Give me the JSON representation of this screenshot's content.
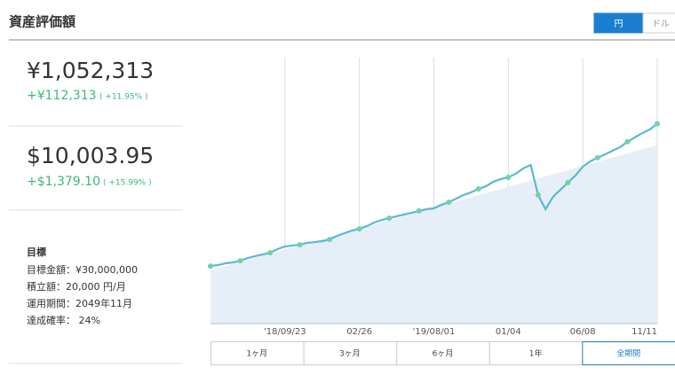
{
  "header": {
    "title": "資産評価額",
    "currency_toggle": [
      "円",
      "ドル"
    ],
    "selected_currency": 0
  },
  "summary": [
    {
      "value": "¥1,052,313",
      "change": "+¥112,313",
      "change_pct": "( +11.95% )"
    },
    {
      "value": "$10,003.95",
      "change": "+$1,379.10",
      "change_pct": "( +15.99% )"
    }
  ],
  "goal": {
    "title": "目標",
    "items": [
      "目標金額：¥30,000,000",
      "積立額：20,000 円/月",
      "運用期間：2049年11月",
      "達成確率： 24%"
    ]
  },
  "chart_data": {
    "type": "line",
    "xlim": [
      0,
      60
    ],
    "ylim": [
      0,
      1400000
    ],
    "xticks": [
      {
        "value": 10,
        "label": "'18/09/23"
      },
      {
        "value": 20,
        "label": "02/26"
      },
      {
        "value": 30,
        "label": "'19/08/01"
      },
      {
        "value": 40,
        "label": "01/04"
      },
      {
        "value": 50,
        "label": "06/08"
      },
      {
        "value": 60,
        "label": "11/11"
      }
    ],
    "grid": true,
    "series": [
      {
        "color": "#5bb8d4",
        "marker_color": "#6fd3a5",
        "values": [
          303000,
          308000,
          317000,
          322000,
          331000,
          345000,
          355000,
          364000,
          373000,
          392000,
          406000,
          411000,
          415000,
          425000,
          429000,
          434000,
          443000,
          462000,
          476000,
          490000,
          499000,
          513000,
          532000,
          546000,
          555000,
          565000,
          574000,
          583000,
          593000,
          602000,
          607000,
          625000,
          639000,
          658000,
          677000,
          691000,
          709000,
          723000,
          747000,
          761000,
          770000,
          789000,
          817000,
          835000,
          677000,
          602000,
          667000,
          705000,
          742000,
          779000,
          826000,
          854000,
          873000,
          891000,
          910000,
          929000,
          957000,
          980000,
          1003000,
          1022000,
          1052313
        ]
      },
      {
        "color": "#e6eff8",
        "fill": true,
        "values": [
          280000,
          291000,
          302000,
          313000,
          324000,
          335000,
          346000,
          357000,
          368000,
          379000,
          390000,
          401000,
          412000,
          423000,
          434000,
          445000,
          456000,
          467000,
          478000,
          489000,
          500000,
          511000,
          522000,
          533000,
          544000,
          555000,
          566000,
          577000,
          588000,
          599000,
          610000,
          621000,
          632000,
          643000,
          654000,
          665000,
          676000,
          687000,
          698000,
          709000,
          720000,
          731000,
          742000,
          753000,
          764000,
          775000,
          786000,
          797000,
          808000,
          819000,
          830000,
          841000,
          852000,
          863000,
          874000,
          885000,
          896000,
          907000,
          918000,
          929000,
          940000
        ]
      }
    ]
  },
  "period_buttons": [
    "1ヶ月",
    "3ヶ月",
    "6ヶ月",
    "1年",
    "全期間"
  ],
  "selected_period": 4
}
